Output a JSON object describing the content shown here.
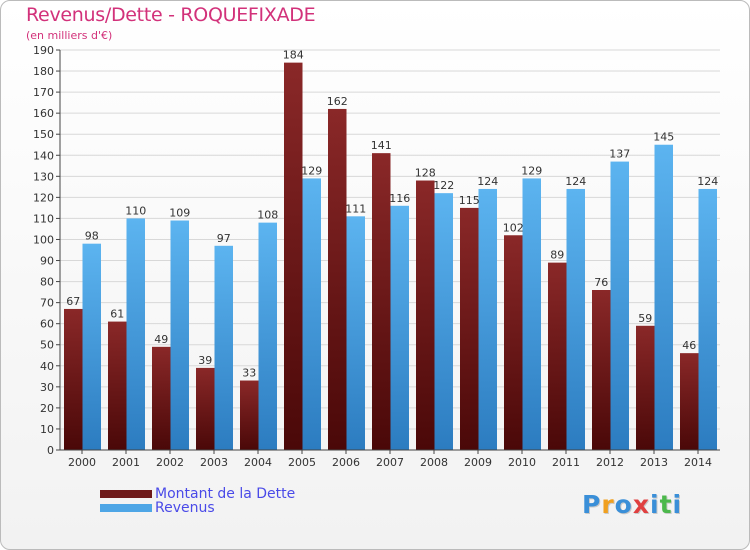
{
  "header": {
    "title": "Revenus/Dette - ROQUEFIXADE",
    "subtitle": "(en milliers d'€)"
  },
  "chart_data": {
    "type": "bar",
    "title": "Revenus/Dette - ROQUEFIXADE",
    "ylabel": "(en milliers d'€)",
    "xlabel": "",
    "ylim": [
      0,
      190
    ],
    "ytick_step": 10,
    "grid": true,
    "categories": [
      "2000",
      "2001",
      "2002",
      "2003",
      "2004",
      "2005",
      "2006",
      "2007",
      "2008",
      "2009",
      "2010",
      "2011",
      "2012",
      "2013",
      "2014"
    ],
    "series": [
      {
        "name": "Montant de la Dette",
        "color": "#7a1e1e",
        "values": [
          67,
          61,
          49,
          39,
          33,
          184,
          162,
          141,
          128,
          115,
          102,
          89,
          76,
          59,
          46
        ]
      },
      {
        "name": "Revenus",
        "color": "#4ea6e6",
        "values": [
          98,
          110,
          109,
          97,
          108,
          129,
          111,
          116,
          122,
          124,
          129,
          124,
          137,
          145,
          124
        ]
      }
    ],
    "legend": "bottom-left"
  },
  "legend": {
    "items": [
      {
        "label": "Montant de la Dette",
        "color": "#6e1a1a"
      },
      {
        "label": "Revenus",
        "color": "#4ea6e6"
      }
    ]
  },
  "logo": {
    "letters": [
      "P",
      "r",
      "o",
      "x",
      "i",
      "t",
      "i"
    ],
    "colors": [
      "#3a8fd8",
      "#f0a020",
      "#3a8fd8",
      "#e04040",
      "#3a8fd8",
      "#4cb84c",
      "#3a8fd8"
    ]
  }
}
